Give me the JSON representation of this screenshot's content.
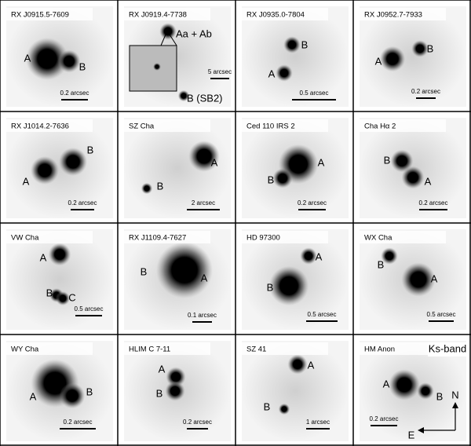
{
  "panels": [
    {
      "name": "RX J0915.5-7609",
      "labels": [
        "A",
        "B"
      ],
      "scale": "0.2 arcsec"
    },
    {
      "name": "RX J0919.4-7738",
      "labels": [
        "Aa + Ab",
        "B (SB2)"
      ],
      "scale": "5 arcsec"
    },
    {
      "name": "RX J0935.0-7804",
      "labels": [
        "B",
        "A"
      ],
      "scale": "0.5 arcsec"
    },
    {
      "name": "RX J0952.7-7933",
      "labels": [
        "A",
        "B"
      ],
      "scale": "0.2 arcsec"
    },
    {
      "name": "RX J1014.2-7636",
      "labels": [
        "A",
        "B"
      ],
      "scale": "0.2 arcsec"
    },
    {
      "name": "SZ Cha",
      "labels": [
        "A",
        "B"
      ],
      "scale": "2 arcsec"
    },
    {
      "name": "Ced 110 IRS 2",
      "labels": [
        "A",
        "B"
      ],
      "scale": "0.2 arcsec"
    },
    {
      "name": "Cha Hα 2",
      "labels": [
        "B",
        "A"
      ],
      "scale": "0.2 arcsec"
    },
    {
      "name": "VW Cha",
      "labels": [
        "A",
        "B",
        "C"
      ],
      "scale": "0.5 arcsec"
    },
    {
      "name": "RX J1109.4-7627",
      "labels": [
        "B",
        "A"
      ],
      "scale": "0.1 arcsec"
    },
    {
      "name": "HD 97300",
      "labels": [
        "B",
        "A"
      ],
      "scale": "0.5 arcsec"
    },
    {
      "name": "WX Cha",
      "labels": [
        "B",
        "A"
      ],
      "scale": "0.5 arcsec"
    },
    {
      "name": "WY Cha",
      "labels": [
        "A",
        "B"
      ],
      "scale": "0.2 arcsec"
    },
    {
      "name": "HLIM C 7-11",
      "labels": [
        "B",
        "A"
      ],
      "scale": "0.2 arcsec"
    },
    {
      "name": "SZ 41",
      "labels": [
        "A",
        "B"
      ],
      "scale": "1 arcsec"
    },
    {
      "name": "HM Anon",
      "labels": [
        "A",
        "B"
      ],
      "scale": "0.2 arcsec"
    }
  ],
  "band": "Ks-band",
  "compass": {
    "north": "N",
    "east": "E"
  }
}
